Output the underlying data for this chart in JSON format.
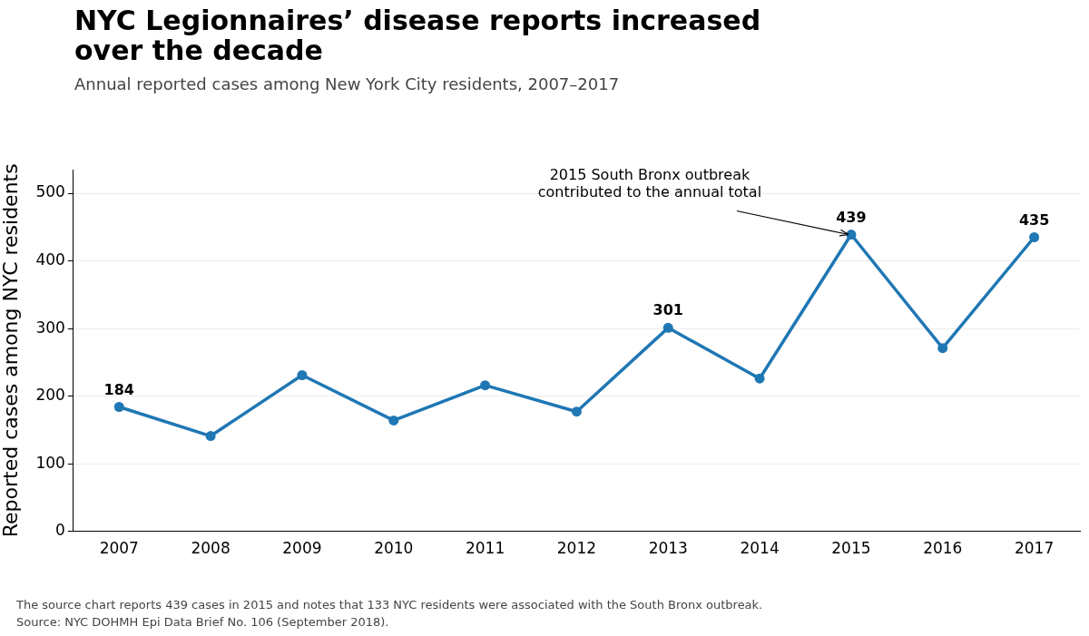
{
  "chart_data": {
    "type": "line",
    "title": "NYC Legionnaires’ disease reports increased over the decade",
    "subtitle": "Annual reported cases among New York City residents, 2007–2017",
    "ylabel": "Reported cases among NYC residents",
    "categories": [
      "2007",
      "2008",
      "2009",
      "2010",
      "2011",
      "2012",
      "2013",
      "2014",
      "2015",
      "2016",
      "2017"
    ],
    "series": [
      {
        "color": "#1f77b4",
        "values": [
          184,
          141,
          231,
          164,
          216,
          177,
          301,
          226,
          439,
          271,
          435
        ],
        "value_labels": [
          "184",
          null,
          null,
          null,
          null,
          null,
          "301",
          null,
          "439",
          null,
          "435"
        ]
      }
    ],
    "ylim": [
      0,
      535
    ],
    "yticks": [
      0,
      100,
      200,
      300,
      400,
      500
    ],
    "grid": "y",
    "legend": false,
    "marker": "circle",
    "line_style": "solid",
    "annotations": [
      {
        "text": "2015 South Bronx outbreak\ncontributed to the annual total",
        "x": "2015",
        "y": 439
      },
      "The source chart reports 439 cases in 2015 and notes that 133 NYC residents were associated with the South Bronx outbreak.",
      "Source: NYC DOHMH Epi Data Brief No. 106 (September 2018)."
    ]
  }
}
